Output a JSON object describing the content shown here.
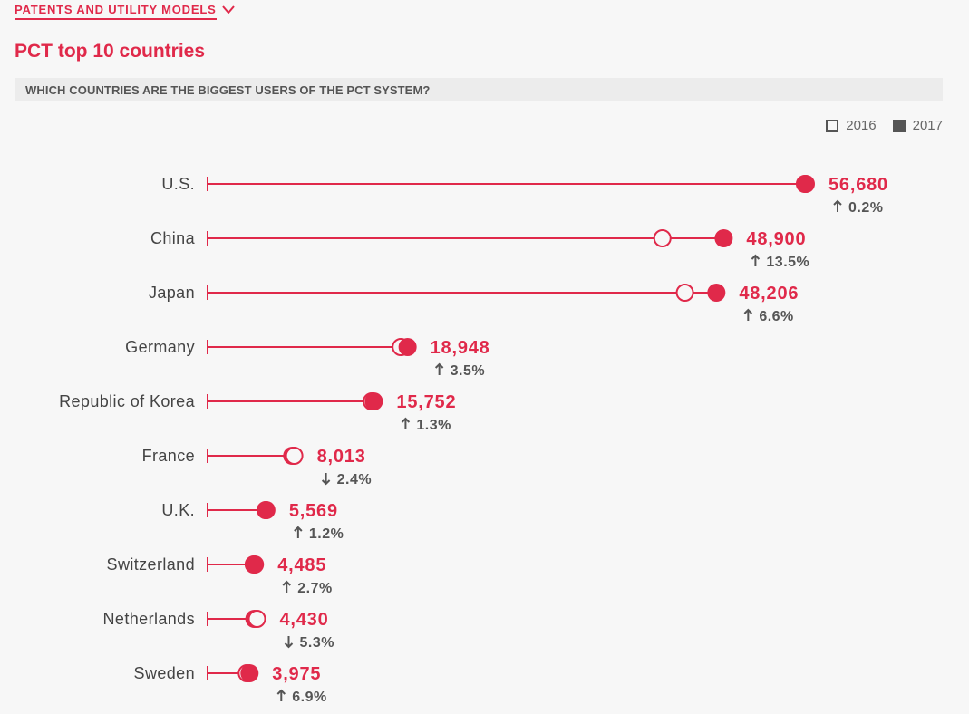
{
  "nav": {
    "section_label": "PATENTS AND UTILITY MODELS"
  },
  "header": {
    "title": "PCT top 10 countries",
    "subtitle": "WHICH COUNTRIES ARE THE BIGGEST USERS OF THE PCT SYSTEM?"
  },
  "legend": {
    "items": [
      "2016",
      "2017"
    ]
  },
  "colors": {
    "accent": "#e0294a",
    "text": "#444444",
    "muted": "#555555"
  },
  "chart_data": {
    "type": "dumbbell",
    "title": "PCT top 10 countries",
    "xlim": [
      0,
      57000
    ],
    "legend_placement": "top-right",
    "series_names": [
      "2016",
      "2017"
    ],
    "categories": [
      "U.S.",
      "China",
      "Japan",
      "Germany",
      "Republic of Korea",
      "France",
      "U.K.",
      "Switzerland",
      "Netherlands",
      "Sweden"
    ],
    "values_2016": [
      56590,
      43090,
      45220,
      18310,
      15550,
      8210,
      5500,
      4370,
      4680,
      3720
    ],
    "values_2017": [
      56680,
      48900,
      48206,
      18948,
      15752,
      8013,
      5569,
      4485,
      4430,
      3975
    ],
    "value_labels": [
      "56,680",
      "48,900",
      "48,206",
      "18,948",
      "15,752",
      "8,013",
      "5,569",
      "4,485",
      "4,430",
      "3,975"
    ],
    "change_direction": [
      "up",
      "up",
      "up",
      "up",
      "up",
      "down",
      "up",
      "up",
      "down",
      "up"
    ],
    "change_labels": [
      "0.2%",
      "13.5%",
      "6.6%",
      "3.5%",
      "1.3%",
      "2.4%",
      "1.2%",
      "2.7%",
      "5.3%",
      "6.9%"
    ]
  }
}
